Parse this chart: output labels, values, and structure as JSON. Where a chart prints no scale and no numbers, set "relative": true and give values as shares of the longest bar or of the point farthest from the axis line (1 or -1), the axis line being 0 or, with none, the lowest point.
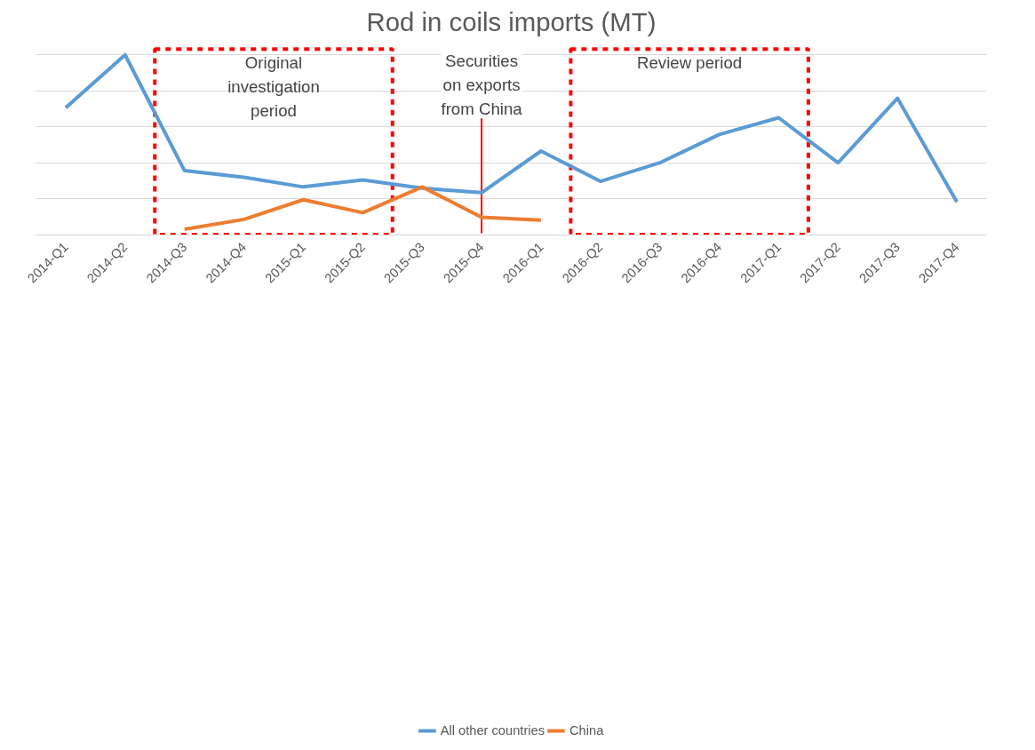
{
  "chart_data": {
    "type": "line",
    "title": "Rod in coils imports (MT)",
    "relative": true,
    "categories": [
      "2014-Q1",
      "2014-Q2",
      "2014-Q3",
      "2014-Q4",
      "2015-Q1",
      "2015-Q2",
      "2015-Q3",
      "2015-Q4",
      "2016-Q1",
      "2016-Q2",
      "2016-Q3",
      "2016-Q4",
      "2017-Q1",
      "2017-Q2",
      "2017-Q3",
      "2017-Q4"
    ],
    "series": [
      {
        "name": "All other countries",
        "color": "#5b9bd5",
        "values": [
          0.706,
          1,
          0.357,
          0.321,
          0.267,
          0.306,
          0.26,
          0.235,
          0.466,
          0.298,
          0.401,
          0.558,
          0.651,
          0.401,
          0.759,
          0.184
        ]
      },
      {
        "name": "China",
        "color": "#ed7d31",
        "values": [
          null,
          null,
          0.032,
          0.087,
          0.196,
          0.124,
          0.267,
          0.099,
          0.083,
          null,
          null,
          null,
          null,
          null,
          null,
          null
        ]
      }
    ],
    "annotations": [
      "Original investigation period",
      "Review period"
    ],
    "ref_lines": [
      {
        "axis": "x",
        "value": "2015-Q4",
        "label": "Securities on exports from China",
        "color": "#ff0000"
      }
    ],
    "grid": "y",
    "legend": "bottom",
    "marker": "none",
    "line_style": "solid"
  }
}
